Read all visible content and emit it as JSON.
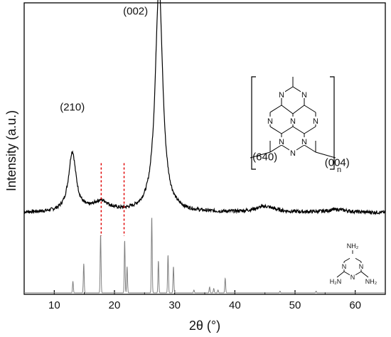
{
  "chart_data": {
    "type": "line",
    "xlabel": "2θ (°)",
    "ylabel": "Intensity (a.u.)",
    "xlim": [
      5,
      65
    ],
    "xticks": [
      10,
      20,
      30,
      40,
      50,
      60
    ],
    "x_tick_labels": [
      "10",
      "20",
      "30",
      "40",
      "50",
      "60"
    ],
    "ylim": [
      0,
      1
    ],
    "grid": false,
    "series": [
      {
        "color": "#000000",
        "peaks": [
          {
            "x": 13.0,
            "amp": 0.205,
            "width": 0.75
          },
          {
            "x": 17.8,
            "amp": 0.035,
            "width": 1.6
          },
          {
            "x": 27.4,
            "amp": 0.78,
            "width": 0.75
          },
          {
            "x": 45.0,
            "amp": 0.02,
            "width": 2.0
          },
          {
            "x": 57.0,
            "amp": 0.01,
            "width": 2.0
          }
        ],
        "baseline": 0.28
      },
      {
        "color": "#808080",
        "peaks": [
          {
            "x": 13.1,
            "amp": 0.04
          },
          {
            "x": 14.9,
            "amp": 0.1
          },
          {
            "x": 17.7,
            "amp": 0.2
          },
          {
            "x": 21.7,
            "amp": 0.18
          },
          {
            "x": 22.1,
            "amp": 0.09
          },
          {
            "x": 26.2,
            "amp": 0.26
          },
          {
            "x": 27.3,
            "amp": 0.11
          },
          {
            "x": 28.9,
            "amp": 0.13
          },
          {
            "x": 29.8,
            "amp": 0.09
          },
          {
            "x": 33.2,
            "amp": 0.01
          },
          {
            "x": 35.8,
            "amp": 0.02
          },
          {
            "x": 36.5,
            "amp": 0.015
          },
          {
            "x": 37.2,
            "amp": 0.01
          },
          {
            "x": 38.4,
            "amp": 0.05
          },
          {
            "x": 47.5,
            "amp": 0.006
          },
          {
            "x": 53.5,
            "amp": 0.006
          }
        ],
        "baseline": 0.005
      }
    ],
    "annotations": [
      {
        "text": "(210)",
        "x": 13.0,
        "y": 0.63
      },
      {
        "text": "(002)",
        "x": 23.5,
        "y": 0.96
      },
      {
        "text": "(640)",
        "x": 45.0,
        "y": 0.46
      },
      {
        "text": "(004)",
        "x": 57.0,
        "y": 0.44
      }
    ],
    "dashed_markers": [
      {
        "x": 17.8,
        "color": "#e00000"
      },
      {
        "x": 21.6,
        "color": "#e00000"
      }
    ],
    "structures": {
      "polymer_n_label": "n",
      "ring_atom": "N",
      "melamine": {
        "amine_top": "NH₂",
        "amine_left": "H₂N",
        "amine_right": "NH₂",
        "ring_atom": "N"
      }
    }
  }
}
